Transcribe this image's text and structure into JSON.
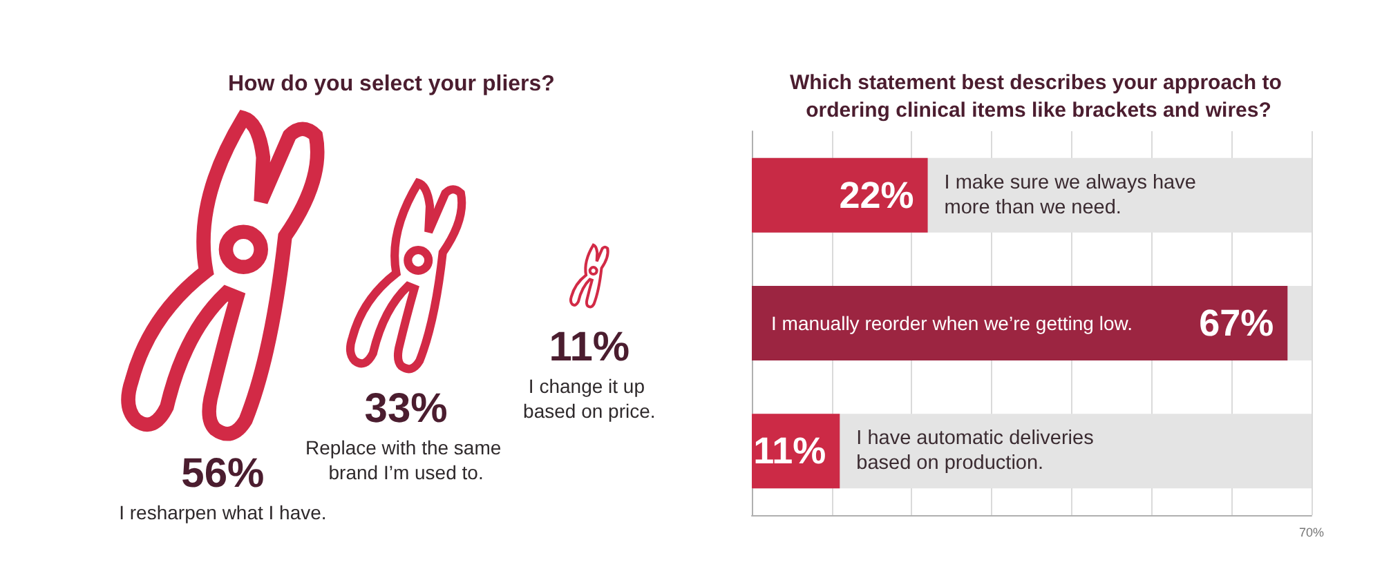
{
  "chart_data": [
    {
      "type": "other",
      "title": "How do you select your pliers?",
      "categories": [
        "I resharpen what I have.",
        "Replace with the same brand I’m used to.",
        "I change it up based on price."
      ],
      "values": [
        56,
        33,
        11
      ],
      "value_labels": [
        "56%",
        "33%",
        "11%"
      ],
      "color": "#d22a46"
    },
    {
      "type": "bar",
      "orientation": "horizontal",
      "title": "Which statement best describes your approach to ordering clinical items like brackets and wires?",
      "categories": [
        "I make sure we always have more than we need.",
        "I manually reorder when we’re getting low.",
        "I have automatic deliveries based on production."
      ],
      "values": [
        22,
        67,
        11
      ],
      "colors": [
        "#c82a45",
        "#9c2541",
        "#cc2a46"
      ],
      "value_labels": [
        "22%",
        "67%",
        "11%"
      ],
      "xlim": [
        0,
        70
      ],
      "xticks": [
        {
          "value": 0,
          "label": null
        },
        {
          "value": 10,
          "label": null
        },
        {
          "value": 20,
          "label": null
        },
        {
          "value": 30,
          "label": null
        },
        {
          "value": 40,
          "label": null
        },
        {
          "value": 50,
          "label": null
        },
        {
          "value": 60,
          "label": null
        },
        {
          "value": 70,
          "label": "70%"
        }
      ],
      "grid": "x",
      "tick_labels": "x"
    }
  ]
}
